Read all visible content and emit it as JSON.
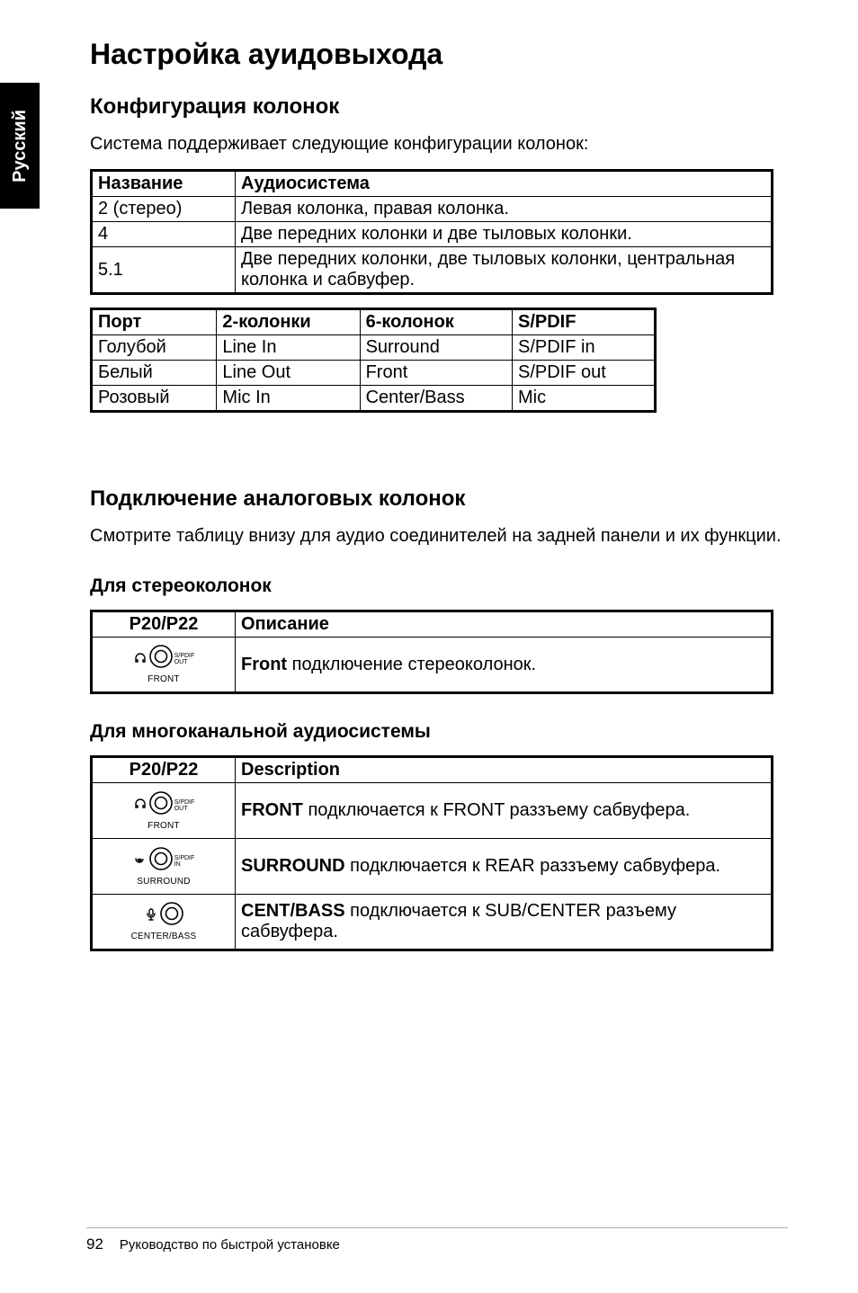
{
  "side_tab": "Русский",
  "h1": "Настройка ауидовыхода",
  "h2_config": "Конфигурация колонок",
  "p_config": "Система поддерживает следующие конфигурации колонок:",
  "table1": {
    "headers": [
      "Название",
      "Аудиосистема"
    ],
    "rows": [
      [
        "2 (стерео)",
        "Левая колонка, правая колонка."
      ],
      [
        "4",
        "Две передних колонки и две тыловых колонки."
      ],
      [
        "5.1",
        "Две передних колонки, две тыловых колонки, центральная колонка и сабвуфер."
      ]
    ]
  },
  "table2": {
    "headers": [
      "Порт",
      "2-колонки",
      "6-колонок",
      "S/PDIF"
    ],
    "rows": [
      [
        "Голубой",
        "Line In",
        "Surround",
        "S/PDIF in"
      ],
      [
        "Белый",
        "Line Out",
        "Front",
        "S/PDIF out"
      ],
      [
        "Розовый",
        "Mic In",
        "Center/Bass",
        "Mic"
      ]
    ]
  },
  "h2_analog": "Подключение аналоговых колонок",
  "p_analog": "Смотрите таблицу внизу для аудио соединителей на задней панели и их функции.",
  "h3_stereo": "Для стереоколонок",
  "table3": {
    "headers": [
      "P20/P22",
      "Описание"
    ],
    "rows": [
      {
        "icon": "front",
        "desc_bold": "Front",
        "desc_rest": " подключение стереоколонок."
      }
    ]
  },
  "h3_multi": "Для многоканальной аудиосистемы",
  "table4": {
    "headers": [
      "P20/P22",
      "Description"
    ],
    "rows": [
      {
        "icon": "front",
        "desc_bold": "FRONT",
        "desc_rest": " подключается к FRONT раззъему сабвуфера."
      },
      {
        "icon": "surround",
        "desc_bold": "SURROUND",
        "desc_rest": " подключается к REAR раззъему сабвуфера."
      },
      {
        "icon": "centerbass",
        "desc_bold": "CENT/BASS",
        "desc_rest": " подключается к SUB/CENTER разъему сабвуфера."
      }
    ]
  },
  "icons": {
    "front": {
      "left_glyph": "headphones",
      "label_below": "FRONT",
      "spdif": "S/PDIF",
      "spdif2": "OUT"
    },
    "surround": {
      "left_glyph": "spiral",
      "label_below": "SURROUND",
      "spdif": "S/PDIF",
      "spdif2": "IN"
    },
    "centerbass": {
      "left_glyph": "mic",
      "label_below": "CENTER/BASS",
      "spdif": "",
      "spdif2": ""
    }
  },
  "footer": {
    "page": "92",
    "text": "Руководство по быстрой установке"
  }
}
